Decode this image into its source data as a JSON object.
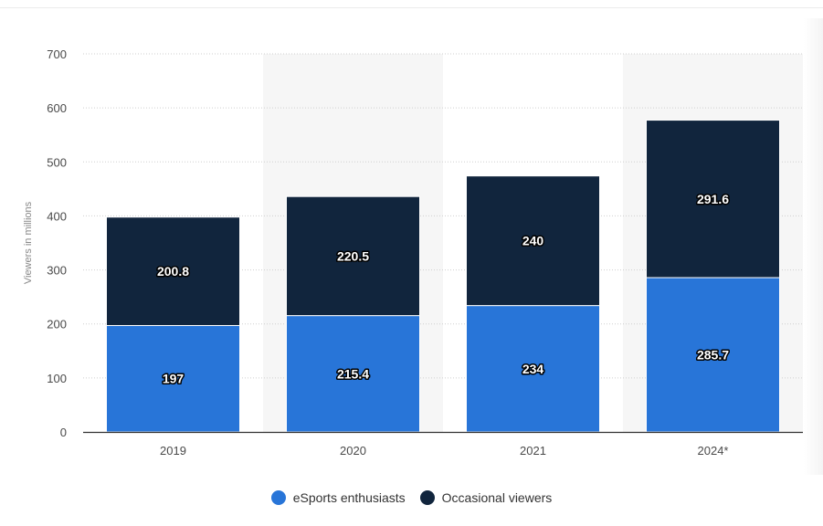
{
  "chart_data": {
    "type": "bar",
    "stacked": true,
    "categories": [
      "2019",
      "2020",
      "2021",
      "2024*"
    ],
    "series": [
      {
        "name": "eSports enthusiasts",
        "values": [
          197,
          215.4,
          234,
          285.7
        ],
        "color": "#2875d8"
      },
      {
        "name": "Occasional viewers",
        "values": [
          200.8,
          220.5,
          240,
          291.6
        ],
        "color": "#11253d"
      }
    ],
    "data_labels": [
      [
        "197",
        "215.4",
        "234",
        "285.7"
      ],
      [
        "200.8",
        "220.5",
        "240",
        "291.6"
      ]
    ],
    "title": "",
    "xlabel": "",
    "ylabel": "Viewers in millions",
    "ylim": [
      0,
      700
    ],
    "yticks": [
      0,
      100,
      200,
      300,
      400,
      500,
      600,
      700
    ],
    "grid": true,
    "legend_position": "bottom-center",
    "highlighted_category_backgrounds": [
      "2020",
      "2024*"
    ]
  }
}
